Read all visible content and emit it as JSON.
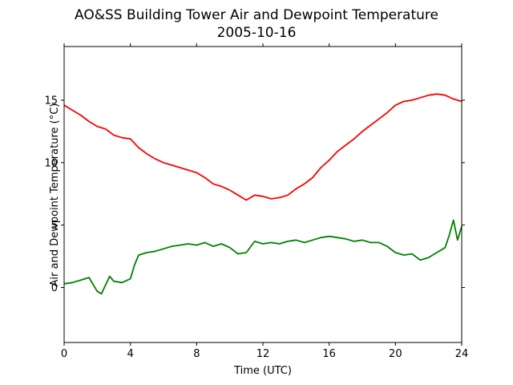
{
  "chart_data": {
    "type": "line",
    "title": "AO&SS Building Tower Air and Dewpoint Temperature",
    "subtitle": "2005-10-16",
    "xlabel": "Time (UTC)",
    "ylabel": "Air and Dewpoint Temperature (°C)",
    "xlim": [
      0,
      24
    ],
    "ylim": [
      -4.4,
      19.3
    ],
    "xticks": [
      0,
      4,
      8,
      12,
      16,
      20,
      24
    ],
    "yticks": [
      0,
      5,
      10,
      15
    ],
    "grid": false,
    "legend": "none",
    "series": [
      {
        "color": "#ff0000",
        "x": [
          0,
          0.5,
          1,
          1.5,
          2,
          2.5,
          3,
          3.5,
          4,
          4.5,
          5,
          5.5,
          6,
          6.5,
          7,
          7.5,
          8,
          8.5,
          9,
          9.5,
          10,
          10.5,
          11,
          11.5,
          12,
          12.5,
          13,
          13.5,
          14,
          14.5,
          15,
          15.5,
          16,
          16.5,
          17,
          17.5,
          18,
          18.5,
          19,
          19.5,
          20,
          20.5,
          21,
          21.5,
          22,
          22.5,
          23,
          23.5,
          24
        ],
        "values": [
          14.6,
          14.2,
          13.8,
          13.3,
          12.9,
          12.7,
          12.2,
          12.0,
          11.9,
          11.2,
          10.7,
          10.3,
          10.0,
          9.8,
          9.6,
          9.4,
          9.2,
          8.8,
          8.3,
          8.1,
          7.8,
          7.4,
          7.0,
          7.4,
          7.3,
          7.1,
          7.2,
          7.4,
          7.9,
          8.3,
          8.8,
          9.6,
          10.2,
          10.9,
          11.4,
          11.9,
          12.5,
          13.0,
          13.5,
          14.0,
          14.6,
          14.9,
          15.0,
          15.2,
          15.4,
          15.5,
          15.4,
          15.1,
          14.9
        ]
      },
      {
        "color": "#008000",
        "x": [
          0,
          0.5,
          1,
          1.5,
          2,
          2.25,
          2.5,
          2.75,
          3,
          3.5,
          4,
          4.25,
          4.5,
          5,
          5.5,
          6,
          6.5,
          7,
          7.5,
          8,
          8.5,
          9,
          9.5,
          10,
          10.5,
          11,
          11.5,
          12,
          12.5,
          13,
          13.5,
          14,
          14.5,
          15,
          15.5,
          16,
          16.5,
          17,
          17.5,
          18,
          18.5,
          19,
          19.5,
          20,
          20.5,
          21,
          21.5,
          22,
          22.5,
          23,
          23.25,
          23.5,
          23.75,
          24
        ],
        "values": [
          0.3,
          0.4,
          0.6,
          0.8,
          -0.3,
          -0.5,
          0.2,
          0.9,
          0.5,
          0.4,
          0.7,
          1.8,
          2.6,
          2.8,
          2.9,
          3.1,
          3.3,
          3.4,
          3.5,
          3.4,
          3.6,
          3.3,
          3.5,
          3.2,
          2.7,
          2.8,
          3.7,
          3.5,
          3.6,
          3.5,
          3.7,
          3.8,
          3.6,
          3.8,
          4.0,
          4.1,
          4.0,
          3.9,
          3.7,
          3.8,
          3.6,
          3.6,
          3.3,
          2.8,
          2.6,
          2.7,
          2.2,
          2.4,
          2.8,
          3.2,
          4.2,
          5.4,
          3.8,
          4.9
        ]
      }
    ]
  }
}
